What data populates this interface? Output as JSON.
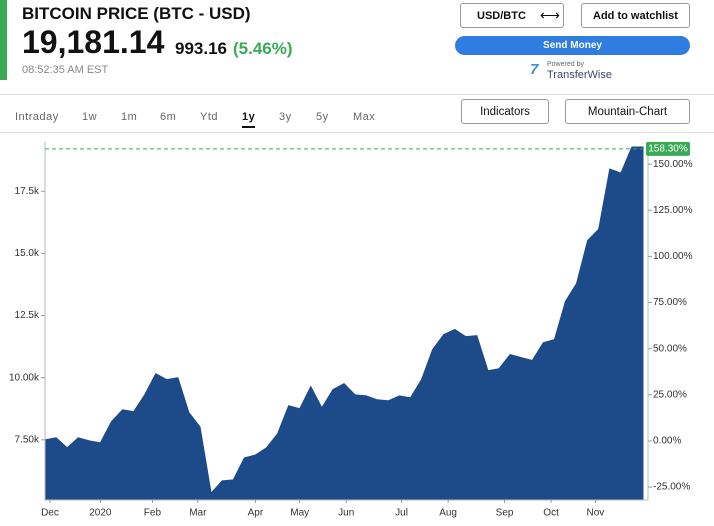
{
  "header": {
    "title": "BITCOIN PRICE (BTC - USD)",
    "price": "19,181.14",
    "change": "993.16",
    "change_pct": "(5.46%)",
    "time": "08:52:35 AM EST"
  },
  "buttons": {
    "currency": "USD/BTC",
    "watchlist": "Add to watchlist",
    "send": "Send Money",
    "powered": "Powered by",
    "brand": "TransferWise",
    "indicators": "Indicators",
    "chart_style": "Mountain-Chart"
  },
  "tabs": {
    "items": [
      "Intraday",
      "1w",
      "1m",
      "6m",
      "Ytd",
      "1y",
      "3y",
      "5y",
      "Max"
    ],
    "active": 5
  },
  "chart_data": {
    "type": "area",
    "color": "#1d4a88",
    "x": [
      0,
      1,
      2,
      3,
      4,
      5,
      6,
      7,
      8,
      9,
      10,
      11,
      12,
      13,
      14,
      15,
      16,
      17,
      18,
      19,
      20,
      21,
      22,
      23,
      24,
      25,
      26,
      27,
      28,
      29,
      30,
      31,
      32,
      33,
      34,
      35,
      36,
      37,
      38,
      39,
      40,
      41,
      42,
      43,
      44,
      45,
      46,
      47,
      48,
      49,
      50,
      51,
      52,
      53,
      54
    ],
    "values": [
      7500,
      7580,
      7180,
      7580,
      7460,
      7380,
      8230,
      8710,
      8630,
      9310,
      10160,
      9920,
      10000,
      8590,
      8020,
      5360,
      5850,
      5890,
      6770,
      6890,
      7180,
      7740,
      8870,
      8750,
      9640,
      8790,
      9520,
      9760,
      9310,
      9270,
      9110,
      9070,
      9270,
      9190,
      9920,
      11130,
      11730,
      11940,
      11650,
      11690,
      10280,
      10360,
      10930,
      10810,
      10690,
      11410,
      11530,
      13070,
      13790,
      15520,
      15970,
      18390,
      18230,
      19280,
      19280
    ],
    "xlim": [
      0,
      54
    ],
    "xticks": [
      {
        "value": 0.45,
        "label": "Dec"
      },
      {
        "value": 5,
        "label": "2020"
      },
      {
        "value": 9.7,
        "label": "Feb"
      },
      {
        "value": 13.8,
        "label": "Mar"
      },
      {
        "value": 19,
        "label": "Apr"
      },
      {
        "value": 23,
        "label": "May"
      },
      {
        "value": 27.2,
        "label": "Jun"
      },
      {
        "value": 32.2,
        "label": "Jul"
      },
      {
        "value": 36.4,
        "label": "Aug"
      },
      {
        "value": 41.5,
        "label": "Sep"
      },
      {
        "value": 45.7,
        "label": "Oct"
      },
      {
        "value": 49.7,
        "label": "Nov"
      }
    ],
    "ylim": [
      5080,
      19480
    ],
    "yticks": [
      {
        "value": 7500,
        "label": "7.50k"
      },
      {
        "value": 10000,
        "label": "10.00k"
      },
      {
        "value": 12500,
        "label": "12.5k"
      },
      {
        "value": 15000,
        "label": "15.0k"
      },
      {
        "value": 17500,
        "label": "17.5k"
      }
    ],
    "y2lim": [
      -32,
      162
    ],
    "y2ticks": [
      {
        "value": -25,
        "label": "-25.00%"
      },
      {
        "value": 0,
        "label": "0.00%"
      },
      {
        "value": 25,
        "label": "25.00%"
      },
      {
        "value": 50,
        "label": "50.00%"
      },
      {
        "value": 75,
        "label": "75.00%"
      },
      {
        "value": 100,
        "label": "100.00%"
      },
      {
        "value": 125,
        "label": "125.00%"
      },
      {
        "value": 150,
        "label": "150.00%"
      }
    ],
    "reference": {
      "value": 158.3,
      "label": "158.30%",
      "color": "#3aaa55"
    }
  }
}
